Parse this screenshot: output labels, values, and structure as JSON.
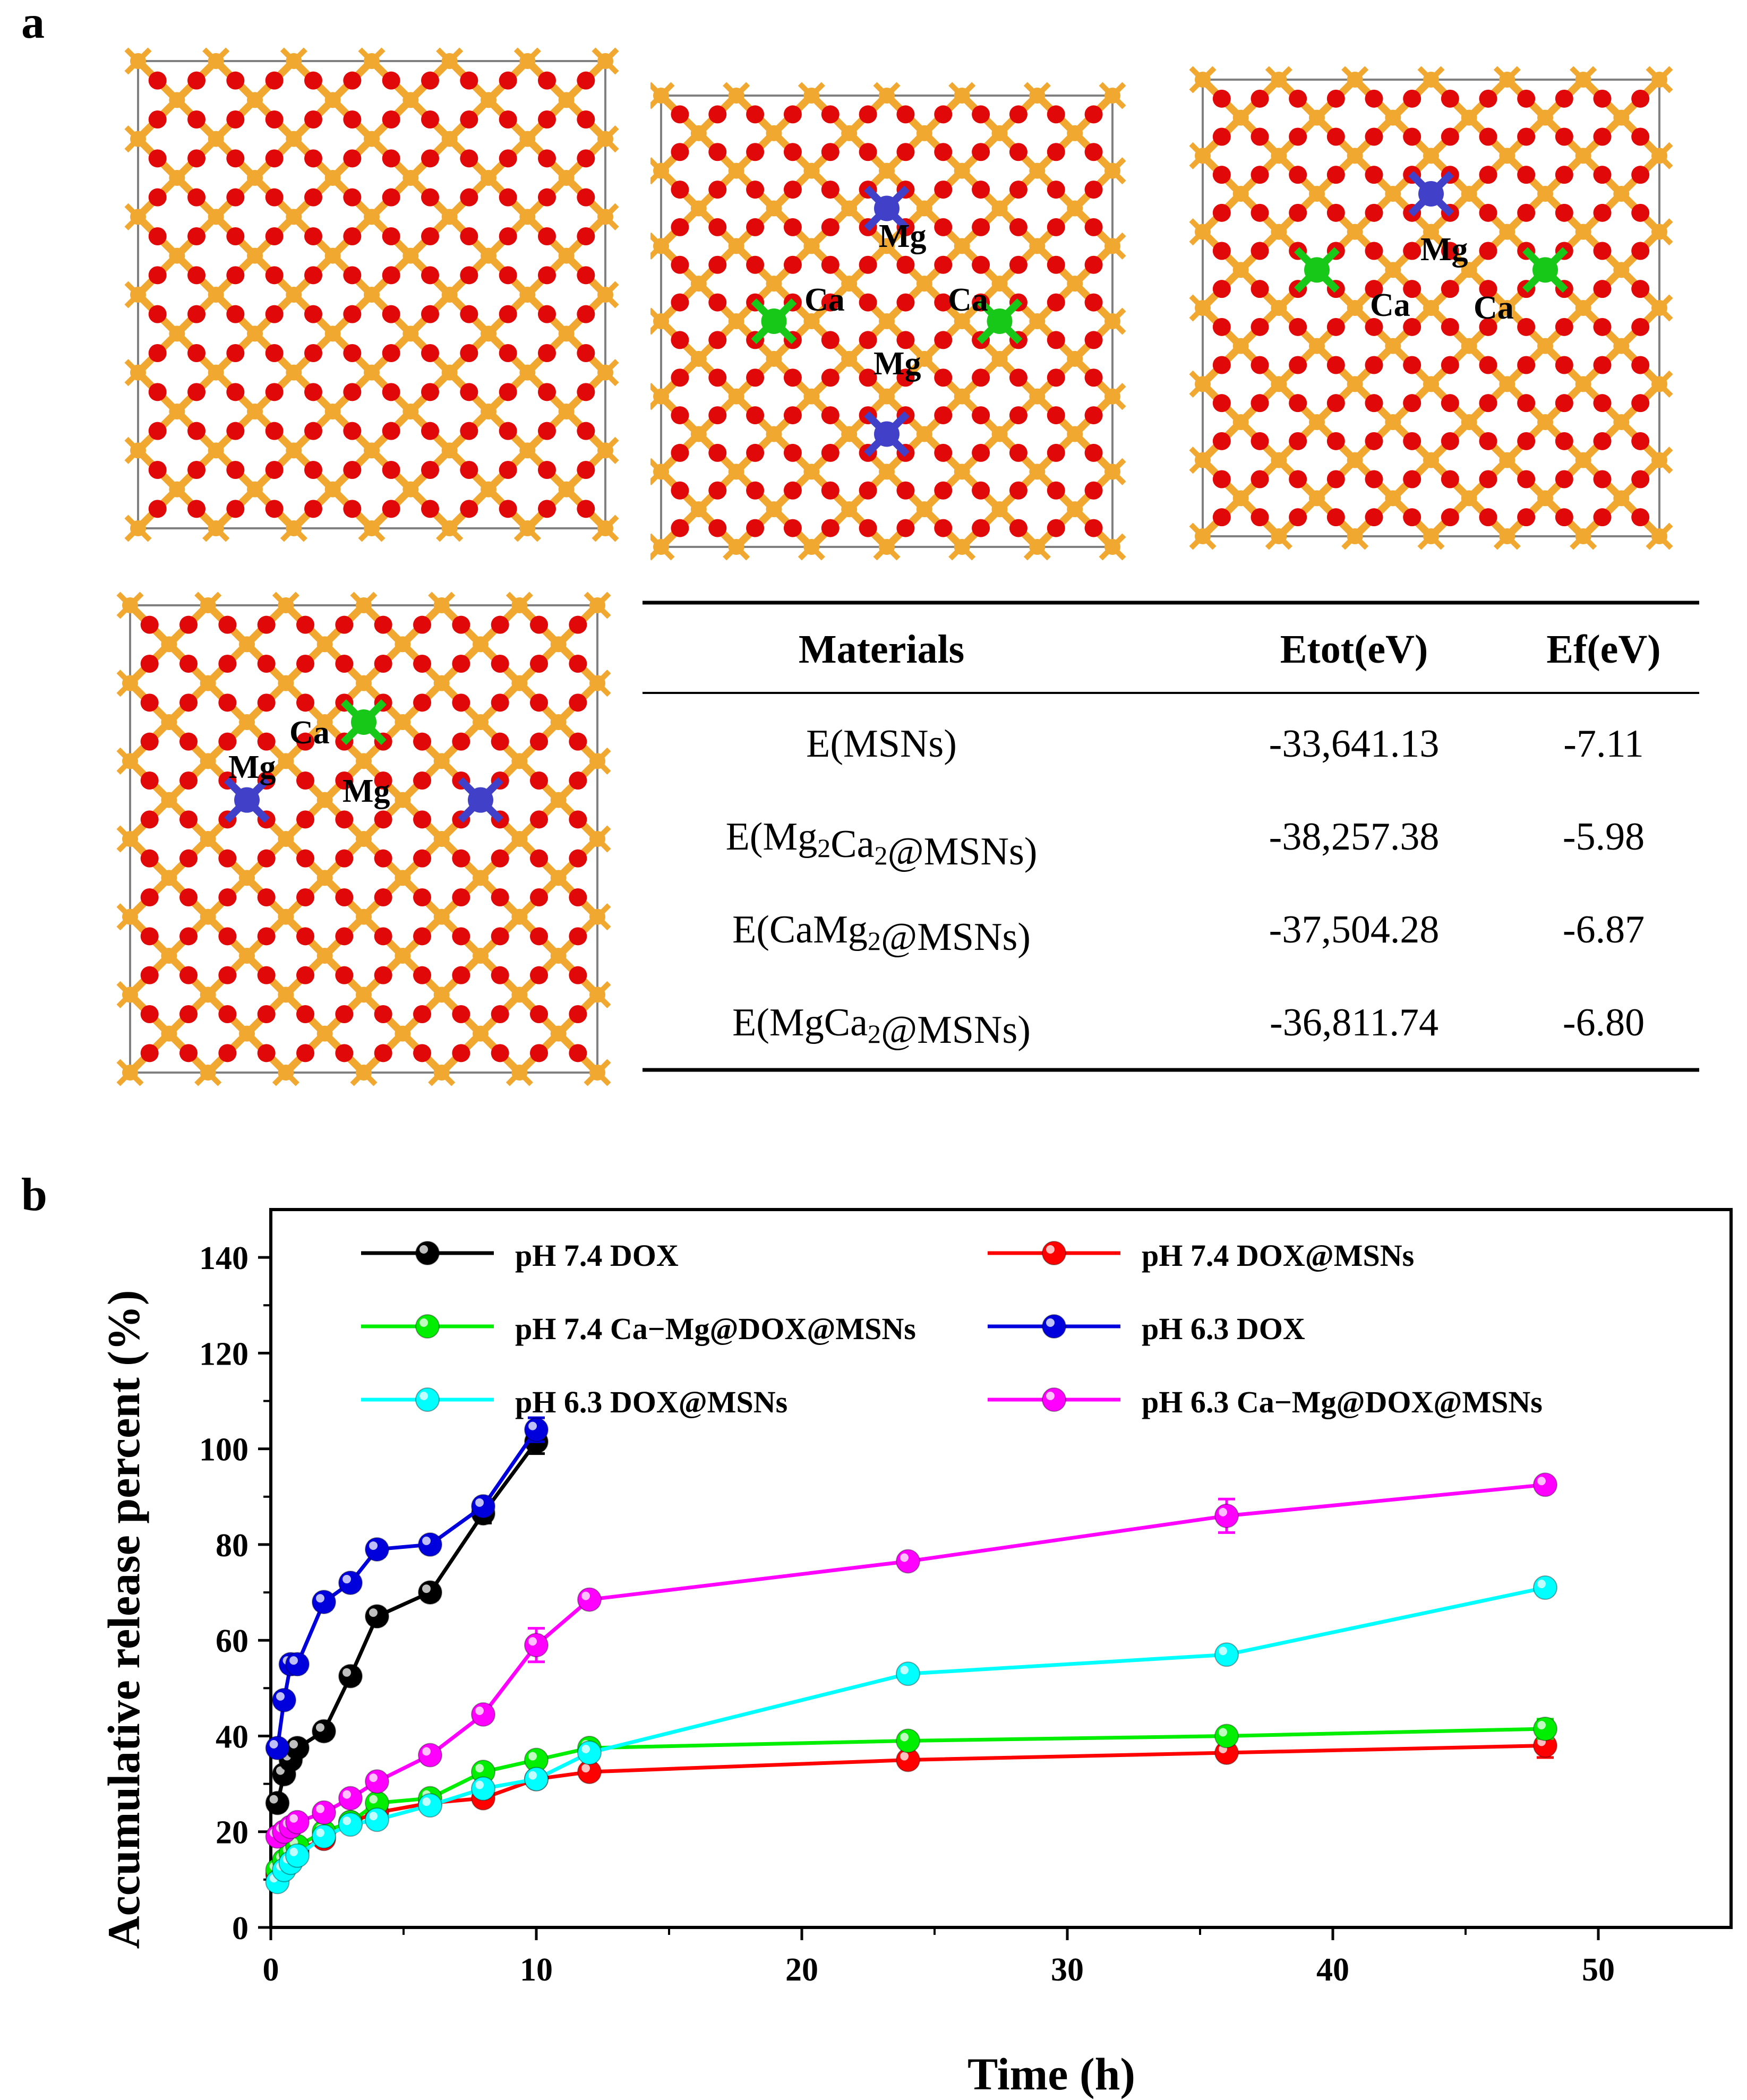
{
  "panel_a": {
    "label": "a",
    "crystals": [
      {
        "id": "pure-msn",
        "annotations": []
      },
      {
        "id": "mg2ca2",
        "annotations": [
          {
            "text": "Mg"
          },
          {
            "text": "Ca"
          },
          {
            "text": "Ca"
          },
          {
            "text": "Mg"
          }
        ]
      },
      {
        "id": "camg2",
        "annotations": [
          {
            "text": "Mg"
          },
          {
            "text": "Ca"
          },
          {
            "text": "Ca"
          }
        ]
      },
      {
        "id": "mgca2",
        "annotations": [
          {
            "text": "Ca"
          },
          {
            "text": "Mg"
          },
          {
            "text": "Mg"
          }
        ]
      }
    ],
    "table": {
      "headers": [
        "Materials",
        "Etot(eV)",
        "Ef(eV)"
      ],
      "rows": [
        {
          "material": "E(MSNs)",
          "sub": "",
          "etot": "-33,641.13",
          "ef": "-7.11"
        },
        {
          "material": "E(Mg2Ca2@MSNs)",
          "etot": "-38,257.38",
          "ef": "-5.98"
        },
        {
          "material": "E(CaMg2@MSNs)",
          "etot": "-37,504.28",
          "ef": "-6.87"
        },
        {
          "material": "E(MgCa2@MSNs)",
          "etot": "-36,811.74",
          "ef": "-6.80"
        }
      ]
    }
  },
  "panel_b": {
    "label": "b"
  },
  "chart_data": {
    "type": "line",
    "title": "",
    "xlabel": "Time (h)",
    "ylabel": "Accumulative release percent (%)",
    "xlim": [
      0,
      55
    ],
    "ylim": [
      0,
      150
    ],
    "xticks": [
      0,
      10,
      20,
      30,
      40,
      50
    ],
    "yticks": [
      0,
      20,
      40,
      60,
      80,
      100,
      120,
      140
    ],
    "legend_position": "top",
    "series": [
      {
        "name": "pH 7.4 DOX",
        "color": "#000000",
        "x": [
          0.25,
          0.5,
          0.75,
          1,
          2,
          3,
          4,
          6,
          8,
          10
        ],
        "y": [
          26,
          32,
          35,
          37.5,
          41,
          52.5,
          65,
          70,
          86.5,
          101.5
        ],
        "err": [
          1.5,
          1.5,
          1.5,
          1.5,
          1.5,
          1.5,
          1.5,
          1.5,
          2,
          2.5
        ]
      },
      {
        "name": "pH 7.4 DOX@MSNs",
        "color": "#ff0000",
        "x": [
          0.25,
          0.5,
          0.75,
          1,
          2,
          3,
          4,
          6,
          8,
          10,
          12,
          24,
          36,
          48
        ],
        "y": [
          11,
          13,
          14.5,
          16,
          18.5,
          22,
          24,
          26,
          27,
          31,
          32.5,
          35,
          36.5,
          38
        ],
        "err": [
          1,
          1,
          1,
          1,
          1,
          1,
          1,
          1,
          1,
          1,
          1,
          1,
          1,
          2.5
        ]
      },
      {
        "name": "pH 7.4 Ca−Mg@DOX@MSNs",
        "color": "#00ee00",
        "x": [
          0.25,
          0.5,
          0.75,
          1,
          2,
          3,
          4,
          6,
          8,
          10,
          12,
          24,
          36,
          48
        ],
        "y": [
          12,
          14,
          15.5,
          17,
          20,
          22,
          26,
          27,
          32.5,
          35,
          37.5,
          39,
          40,
          41.5
        ],
        "err": [
          1,
          1,
          1,
          1,
          1,
          1,
          1,
          1,
          1,
          1.5,
          1.5,
          1,
          1,
          2
        ]
      },
      {
        "name": "pH 6.3 DOX",
        "color": "#0000dd",
        "x": [
          0.25,
          0.5,
          0.75,
          1,
          2,
          3,
          4,
          6,
          8,
          10
        ],
        "y": [
          37.5,
          47.5,
          55,
          55,
          68,
          72,
          79,
          80,
          88,
          104
        ],
        "err": [
          1.5,
          1.5,
          1.5,
          1.5,
          1.5,
          1.5,
          1.5,
          1.5,
          1.5,
          2.5
        ]
      },
      {
        "name": "pH 6.3 DOX@MSNs",
        "color": "#00ffff",
        "x": [
          0.25,
          0.5,
          0.75,
          1,
          2,
          3,
          4,
          6,
          8,
          10,
          12,
          24,
          36,
          48
        ],
        "y": [
          9.5,
          12,
          13.5,
          15,
          19,
          21.5,
          22.5,
          25.5,
          29,
          31,
          36.5,
          53,
          57,
          71
        ],
        "err": [
          1,
          1,
          1,
          1,
          1,
          1,
          1,
          1,
          1,
          1,
          1.5,
          1,
          1,
          1.5
        ]
      },
      {
        "name": "pH 6.3 Ca−Mg@DOX@MSNs",
        "color": "#ff00ff",
        "x": [
          0.25,
          0.5,
          0.75,
          1,
          2,
          3,
          4,
          6,
          8,
          10,
          12,
          24,
          36,
          48
        ],
        "y": [
          19,
          20,
          21,
          22,
          24,
          27,
          30.5,
          36,
          44.5,
          59,
          68.5,
          76.5,
          86,
          92.5
        ],
        "err": [
          1,
          1,
          1,
          1,
          1,
          1,
          1,
          1,
          1,
          3.5,
          1,
          1,
          3.5,
          1
        ]
      }
    ]
  },
  "colors": {
    "silicon": "#f0a830",
    "oxygen": "#e00808",
    "calcium": "#18c818",
    "magnesium": "#4040c8"
  }
}
